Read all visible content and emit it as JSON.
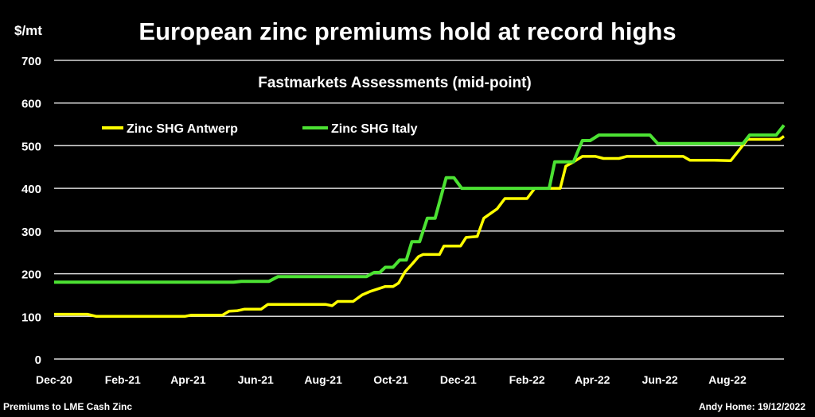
{
  "chart_data": {
    "type": "line",
    "title": "European zinc premiums hold at record highs",
    "subtitle": "Fastmarkets Assessments (mid-point)",
    "ylabel": "$/mt",
    "xlabel": "",
    "ylim": [
      0,
      700
    ],
    "yticks": [
      0,
      100,
      200,
      300,
      400,
      500,
      600,
      700
    ],
    "xlim": [
      "2020-12-01",
      "2022-09-21"
    ],
    "xticks": [
      {
        "date": "2020-12-01",
        "label": "Dec-20"
      },
      {
        "date": "2021-02-01",
        "label": "Feb-21"
      },
      {
        "date": "2021-04-01",
        "label": "Apr-21"
      },
      {
        "date": "2021-06-01",
        "label": "Jun-21"
      },
      {
        "date": "2021-08-01",
        "label": "Aug-21"
      },
      {
        "date": "2021-10-01",
        "label": "Oct-21"
      },
      {
        "date": "2021-12-01",
        "label": "Dec-21"
      },
      {
        "date": "2022-02-01",
        "label": "Feb-22"
      },
      {
        "date": "2022-04-01",
        "label": "Apr-22"
      },
      {
        "date": "2022-06-01",
        "label": "Jun-22"
      },
      {
        "date": "2022-08-01",
        "label": "Aug-22"
      }
    ],
    "grid": true,
    "legend_position": "top-left",
    "series": [
      {
        "name": "Zinc SHG Antwerp",
        "color": "#ffff00",
        "points": [
          [
            "2020-12-01",
            105
          ],
          [
            "2020-12-31",
            105
          ],
          [
            "2021-01-08",
            100
          ],
          [
            "2021-03-29",
            100
          ],
          [
            "2021-04-04",
            103
          ],
          [
            "2021-05-02",
            103
          ],
          [
            "2021-05-08",
            112
          ],
          [
            "2021-05-15",
            113
          ],
          [
            "2021-05-22",
            117
          ],
          [
            "2021-06-06",
            117
          ],
          [
            "2021-06-12",
            128
          ],
          [
            "2021-08-03",
            128
          ],
          [
            "2021-08-09",
            125
          ],
          [
            "2021-08-14",
            135
          ],
          [
            "2021-08-28",
            135
          ],
          [
            "2021-09-05",
            150
          ],
          [
            "2021-09-12",
            158
          ],
          [
            "2021-09-26",
            170
          ],
          [
            "2021-10-03",
            170
          ],
          [
            "2021-10-08",
            178
          ],
          [
            "2021-10-14",
            205
          ],
          [
            "2021-10-20",
            222
          ],
          [
            "2021-10-26",
            240
          ],
          [
            "2021-10-30",
            245
          ],
          [
            "2021-11-14",
            245
          ],
          [
            "2021-11-18",
            265
          ],
          [
            "2021-12-03",
            265
          ],
          [
            "2021-12-08",
            285
          ],
          [
            "2021-12-18",
            287
          ],
          [
            "2021-12-24",
            330
          ],
          [
            "2022-01-05",
            352
          ],
          [
            "2022-01-12",
            376
          ],
          [
            "2022-02-01",
            376
          ],
          [
            "2022-02-08",
            400
          ],
          [
            "2022-03-03",
            400
          ],
          [
            "2022-03-08",
            452
          ],
          [
            "2022-03-15",
            462
          ],
          [
            "2022-03-23",
            475
          ],
          [
            "2022-04-04",
            475
          ],
          [
            "2022-04-11",
            470
          ],
          [
            "2022-04-25",
            470
          ],
          [
            "2022-05-02",
            475
          ],
          [
            "2022-06-22",
            475
          ],
          [
            "2022-06-28",
            466
          ],
          [
            "2022-07-20",
            466
          ],
          [
            "2022-08-04",
            465
          ],
          [
            "2022-08-11",
            488
          ],
          [
            "2022-08-19",
            515
          ],
          [
            "2022-09-17",
            515
          ],
          [
            "2022-09-21",
            522
          ]
        ]
      },
      {
        "name": "Zinc SHG Italy",
        "color": "#4ce233",
        "points": [
          [
            "2020-12-01",
            180
          ],
          [
            "2021-05-12",
            180
          ],
          [
            "2021-05-19",
            182
          ],
          [
            "2021-06-13",
            182
          ],
          [
            "2021-06-21",
            193
          ],
          [
            "2021-09-09",
            193
          ],
          [
            "2021-09-16",
            203
          ],
          [
            "2021-09-21",
            203
          ],
          [
            "2021-09-26",
            215
          ],
          [
            "2021-10-03",
            215
          ],
          [
            "2021-10-09",
            232
          ],
          [
            "2021-10-15",
            232
          ],
          [
            "2021-10-20",
            275
          ],
          [
            "2021-10-27",
            275
          ],
          [
            "2021-11-03",
            330
          ],
          [
            "2021-11-10",
            330
          ],
          [
            "2021-11-20",
            425
          ],
          [
            "2021-11-27",
            425
          ],
          [
            "2021-12-04",
            400
          ],
          [
            "2022-02-21",
            400
          ],
          [
            "2022-02-26",
            462
          ],
          [
            "2022-03-15",
            462
          ],
          [
            "2022-03-23",
            512
          ],
          [
            "2022-03-30",
            512
          ],
          [
            "2022-04-07",
            525
          ],
          [
            "2022-05-23",
            525
          ],
          [
            "2022-05-30",
            505
          ],
          [
            "2022-08-15",
            505
          ],
          [
            "2022-08-21",
            525
          ],
          [
            "2022-09-14",
            525
          ],
          [
            "2022-09-21",
            548
          ]
        ]
      }
    ]
  },
  "footer": {
    "left": "Premiums to LME Cash Zinc",
    "right": "Andy Home: 19/12/2022"
  }
}
